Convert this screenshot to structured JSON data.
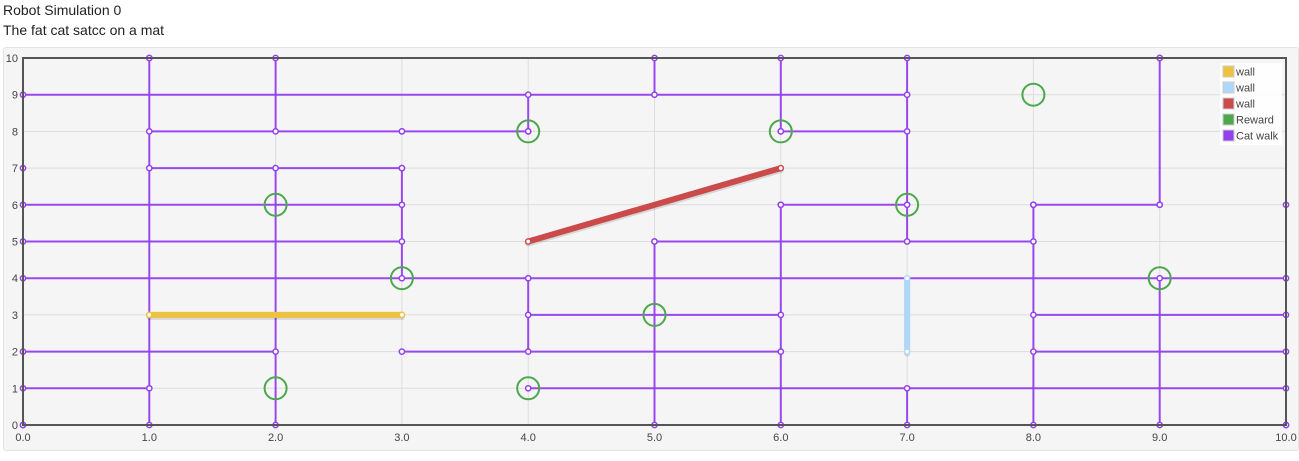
{
  "page": {
    "title": "Robot Simulation 0",
    "subtitle": "The fat cat satcc on a mat"
  },
  "chart_data": {
    "type": "line",
    "xlim": [
      0,
      10
    ],
    "ylim": [
      0,
      10
    ],
    "x_ticks": [
      "0.0",
      "1.0",
      "2.0",
      "3.0",
      "4.0",
      "5.0",
      "6.0",
      "7.0",
      "8.0",
      "9.0",
      "10.0"
    ],
    "y_ticks": [
      "0",
      "1",
      "2",
      "3",
      "4",
      "5",
      "6",
      "7",
      "8",
      "9",
      "10"
    ],
    "grid": true,
    "legend_position": "top-right",
    "series": [
      {
        "name": "wall",
        "color": "#edc240",
        "width": 6,
        "segments": [
          [
            [
              1,
              3
            ],
            [
              3,
              3
            ]
          ]
        ]
      },
      {
        "name": "wall",
        "color": "#afd8f8",
        "width": 6,
        "segments": [
          [
            [
              7,
              2
            ],
            [
              7,
              4
            ]
          ]
        ]
      },
      {
        "name": "wall",
        "color": "#cb4b4b",
        "width": 6,
        "segments": [
          [
            [
              4,
              5
            ],
            [
              6,
              7
            ]
          ]
        ]
      },
      {
        "name": "Reward",
        "color": "#4da74d",
        "points": [
          [
            4,
            8
          ],
          [
            6,
            8
          ],
          [
            8,
            9
          ],
          [
            2,
            6
          ],
          [
            7,
            6
          ],
          [
            3,
            4
          ],
          [
            9,
            4
          ],
          [
            5,
            3
          ],
          [
            2,
            1
          ],
          [
            4,
            1
          ]
        ]
      },
      {
        "name": "Cat walk",
        "color": "#9440ed",
        "width": 2,
        "segments": [
          [
            [
              1,
              10
            ],
            [
              9,
              10
            ]
          ],
          [
            [
              0,
              9
            ],
            [
              7,
              9
            ]
          ],
          [
            [
              1,
              8
            ],
            [
              3,
              8
            ]
          ],
          [
            [
              4,
              8
            ],
            [
              3,
              8
            ]
          ],
          [
            [
              6,
              8
            ],
            [
              7,
              8
            ]
          ],
          [
            [
              1,
              7
            ],
            [
              3,
              7
            ]
          ],
          [
            [
              0,
              6
            ],
            [
              3,
              6
            ]
          ],
          [
            [
              6,
              6
            ],
            [
              7,
              6
            ]
          ],
          [
            [
              8,
              6
            ],
            [
              9,
              6
            ]
          ],
          [
            [
              0,
              5
            ],
            [
              3,
              5
            ]
          ],
          [
            [
              5,
              5
            ],
            [
              8,
              5
            ]
          ],
          [
            [
              0,
              4
            ],
            [
              10,
              4
            ]
          ],
          [
            [
              4,
              3
            ],
            [
              6,
              3
            ]
          ],
          [
            [
              8,
              3
            ],
            [
              10,
              3
            ]
          ],
          [
            [
              0,
              2
            ],
            [
              2,
              2
            ]
          ],
          [
            [
              3,
              2
            ],
            [
              6,
              2
            ]
          ],
          [
            [
              8,
              2
            ],
            [
              10,
              2
            ]
          ],
          [
            [
              0,
              1
            ],
            [
              1,
              1
            ]
          ],
          [
            [
              4,
              1
            ],
            [
              10,
              1
            ]
          ],
          [
            [
              0,
              0
            ],
            [
              10,
              0
            ]
          ],
          [
            [
              0,
              0
            ],
            [
              0,
              7
            ]
          ],
          [
            [
              1,
              0
            ],
            [
              1,
              10
            ]
          ],
          [
            [
              2,
              10
            ],
            [
              2,
              8
            ]
          ],
          [
            [
              2,
              7
            ],
            [
              2,
              0
            ]
          ],
          [
            [
              3,
              7
            ],
            [
              3,
              4
            ]
          ],
          [
            [
              4,
              9
            ],
            [
              4,
              8
            ]
          ],
          [
            [
              4,
              4
            ],
            [
              4,
              2
            ]
          ],
          [
            [
              5,
              10
            ],
            [
              5,
              9
            ]
          ],
          [
            [
              5,
              5
            ],
            [
              5,
              0
            ]
          ],
          [
            [
              6,
              10
            ],
            [
              6,
              8
            ]
          ],
          [
            [
              6,
              6
            ],
            [
              6,
              0
            ]
          ],
          [
            [
              7,
              10
            ],
            [
              7,
              5
            ]
          ],
          [
            [
              7,
              1
            ],
            [
              7,
              0
            ]
          ],
          [
            [
              8,
              6
            ],
            [
              8,
              0
            ]
          ],
          [
            [
              9,
              10
            ],
            [
              9,
              6
            ]
          ],
          [
            [
              9,
              4
            ],
            [
              9,
              0
            ]
          ],
          [
            [
              10,
              6
            ],
            [
              10,
              0
            ]
          ]
        ]
      }
    ]
  }
}
